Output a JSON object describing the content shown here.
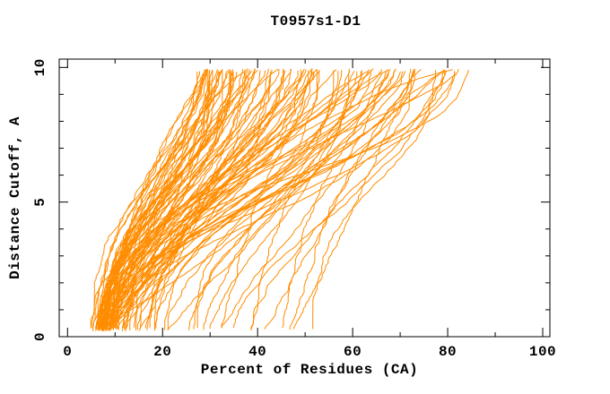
{
  "window": {
    "background": "#ffffff"
  },
  "chart_data": {
    "type": "line",
    "title": "T0957s1-D1",
    "xlabel": "Percent of Residues (CA)",
    "ylabel": "Distance Cutoff, A",
    "xlim": [
      0,
      100
    ],
    "ylim": [
      0,
      10
    ],
    "grid": false,
    "legend": "none",
    "axes": {
      "x_major_ticks": [
        0,
        20,
        40,
        60,
        80,
        100
      ],
      "x_minor_tick_step": 10,
      "y_major_ticks": [
        0,
        5,
        10
      ],
      "y_minor_tick_step": 1,
      "tick_direction": "in",
      "mirror_ticks": true
    },
    "series_style": {
      "color": "#FF8C00",
      "width": 1
    },
    "curve_family": {
      "kind": "per-model cumulative distance-cutoff curves (percent of CA residues within cutoff)",
      "n_curves": 110,
      "seed": 20181,
      "y_bottom": 0.2,
      "y_top": 9.9,
      "x_at_top_min": 28,
      "x_at_top_max": 84,
      "x_at_bottom_min": 5,
      "x_at_bottom_max": 62
    }
  }
}
